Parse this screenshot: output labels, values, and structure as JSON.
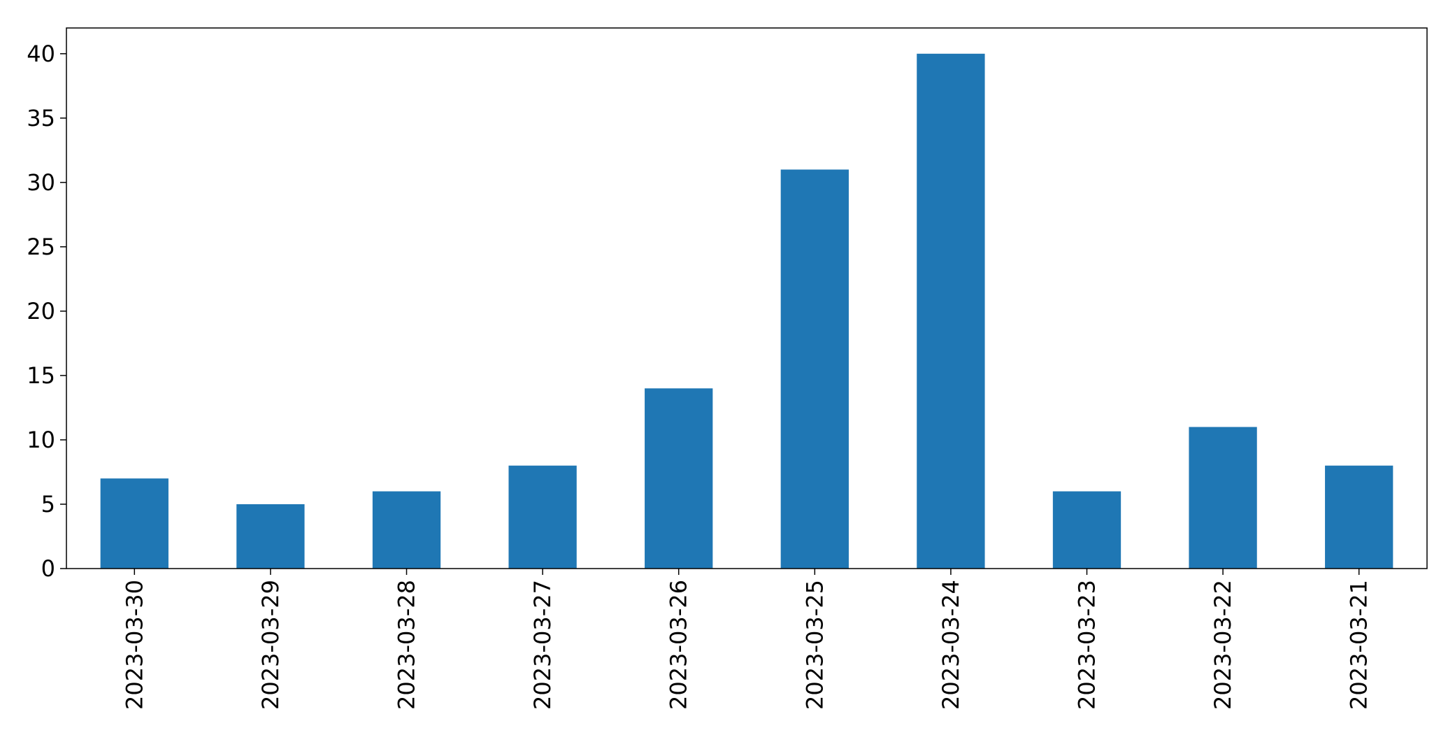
{
  "chart_data": {
    "type": "bar",
    "title": "",
    "xlabel": "",
    "ylabel": "",
    "categories": [
      "2023-03-30",
      "2023-03-29",
      "2023-03-28",
      "2023-03-27",
      "2023-03-26",
      "2023-03-25",
      "2023-03-24",
      "2023-03-23",
      "2023-03-22",
      "2023-03-21"
    ],
    "values": [
      7,
      5,
      6,
      8,
      14,
      31,
      40,
      6,
      11,
      8
    ],
    "ylim": [
      0,
      42
    ],
    "yticks": [
      "0",
      "5",
      "10",
      "15",
      "20",
      "25",
      "30",
      "35",
      "40"
    ],
    "grid": false,
    "legend": "none",
    "bar_color": "#1f77b4"
  }
}
